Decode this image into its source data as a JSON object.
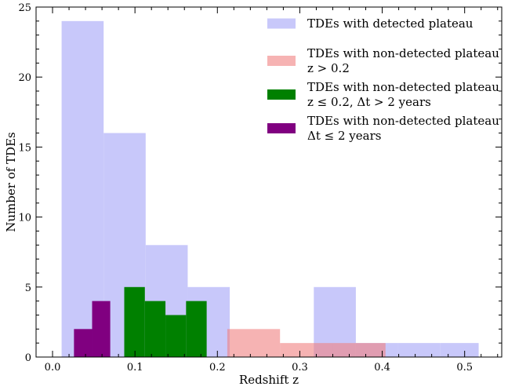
{
  "chart_data": {
    "type": "bar",
    "xlabel": "Redshift z",
    "ylabel": "Number of TDEs",
    "xlim": [
      -0.02,
      0.545
    ],
    "ylim": [
      0,
      25
    ],
    "grid": false,
    "legend_position": "top-right",
    "xticks": [
      0.0,
      0.1,
      0.2,
      0.3,
      0.4,
      0.5
    ],
    "xtick_labels": [
      "0.0",
      "0.1",
      "0.2",
      "0.3",
      "0.4",
      "0.5"
    ],
    "yticks": [
      0,
      5,
      10,
      15,
      20,
      25
    ],
    "ytick_labels": [
      "0",
      "5",
      "10",
      "15",
      "20",
      "25"
    ],
    "series": [
      {
        "name": "TDEs with detected plateau",
        "legend_lines": [
          "TDEs with detected plateau"
        ],
        "color": "#c8c8fa",
        "bins": [
          {
            "x0": 0.011,
            "x1": 0.062,
            "value": 24
          },
          {
            "x0": 0.062,
            "x1": 0.113,
            "value": 16
          },
          {
            "x0": 0.113,
            "x1": 0.164,
            "value": 8
          },
          {
            "x0": 0.164,
            "x1": 0.215,
            "value": 5
          },
          {
            "x0": 0.215,
            "x1": 0.266,
            "value": 0
          },
          {
            "x0": 0.266,
            "x1": 0.317,
            "value": 0
          },
          {
            "x0": 0.317,
            "x1": 0.368,
            "value": 5
          },
          {
            "x0": 0.368,
            "x1": 0.419,
            "value": 1
          },
          {
            "x0": 0.419,
            "x1": 0.47,
            "value": 1
          },
          {
            "x0": 0.47,
            "x1": 0.517,
            "value": 1
          }
        ]
      },
      {
        "name": "TDEs with non-detected plateau z > 0.2",
        "legend_lines": [
          "TDEs with non-detected plateau",
          "z > 0.2"
        ],
        "color": "#f08080",
        "opacity": 0.6,
        "bins": [
          {
            "x0": 0.212,
            "x1": 0.276,
            "value": 2
          },
          {
            "x0": 0.276,
            "x1": 0.34,
            "value": 1
          },
          {
            "x0": 0.34,
            "x1": 0.404,
            "value": 1
          }
        ]
      },
      {
        "name": "TDEs with non-detected plateau z ≤ 0.2, Δt > 2 years",
        "legend_lines": [
          "TDEs with non-detected plateau",
          "z ≤ 0.2, Δt > 2 years"
        ],
        "color": "#008000",
        "bins": [
          {
            "x0": 0.087,
            "x1": 0.112,
            "value": 5
          },
          {
            "x0": 0.112,
            "x1": 0.137,
            "value": 4
          },
          {
            "x0": 0.137,
            "x1": 0.162,
            "value": 3
          },
          {
            "x0": 0.162,
            "x1": 0.187,
            "value": 4
          }
        ]
      },
      {
        "name": "TDEs with non-detected plateau Δt ≤ 2 years",
        "legend_lines": [
          "TDEs with non-detected plateau",
          "Δt ≤ 2 years"
        ],
        "color": "#800080",
        "bins": [
          {
            "x0": 0.026,
            "x1": 0.048,
            "value": 2
          },
          {
            "x0": 0.048,
            "x1": 0.07,
            "value": 4
          }
        ]
      }
    ]
  }
}
